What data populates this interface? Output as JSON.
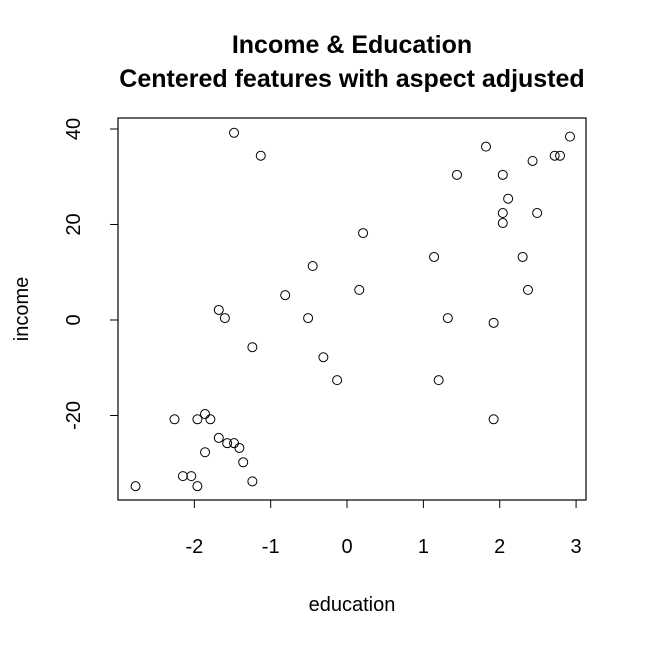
{
  "chart_data": {
    "type": "scatter",
    "title": "Income & Education",
    "subtitle": "Centered features with aspect adjusted",
    "x_label": "education",
    "y_label": "income",
    "x": [
      -1.48,
      -1.13,
      -2.77,
      1.82,
      1.44,
      2.04,
      2.11,
      2.43,
      2.72,
      2.79,
      2.92,
      2.04,
      2.49,
      2.04,
      0.21,
      1.14,
      2.3,
      -0.45,
      2.37,
      0.16,
      -0.81,
      -1.68,
      -1.6,
      -0.51,
      1.32,
      1.92,
      -1.24,
      -0.31,
      -0.13,
      1.2,
      -2.26,
      -1.96,
      -1.86,
      -1.79,
      1.92,
      -1.68,
      -1.57,
      -1.48,
      -1.41,
      -1.86,
      -1.36,
      -2.15,
      -2.04,
      -1.96,
      -1.24
    ],
    "values": [
      39.2,
      34.4,
      -34.8,
      36.3,
      30.4,
      30.4,
      25.4,
      33.3,
      34.4,
      34.4,
      38.4,
      22.4,
      22.4,
      20.3,
      18.2,
      13.2,
      13.2,
      11.3,
      6.3,
      6.3,
      5.2,
      2.1,
      0.4,
      0.4,
      0.4,
      -0.6,
      -5.7,
      -7.8,
      -12.6,
      -12.6,
      -20.8,
      -20.8,
      -19.7,
      -20.8,
      -20.8,
      -24.7,
      -25.8,
      -25.8,
      -26.8,
      -27.7,
      -29.8,
      -32.7,
      -32.7,
      -34.8,
      -33.8
    ],
    "color": "#000000",
    "xlim": [
      -3.0,
      3.13
    ],
    "ylim": [
      -37.7,
      42.3
    ],
    "xticks": [
      -2,
      -1,
      0,
      1,
      2,
      3
    ],
    "yticks": [
      -20,
      0,
      20,
      40
    ]
  }
}
